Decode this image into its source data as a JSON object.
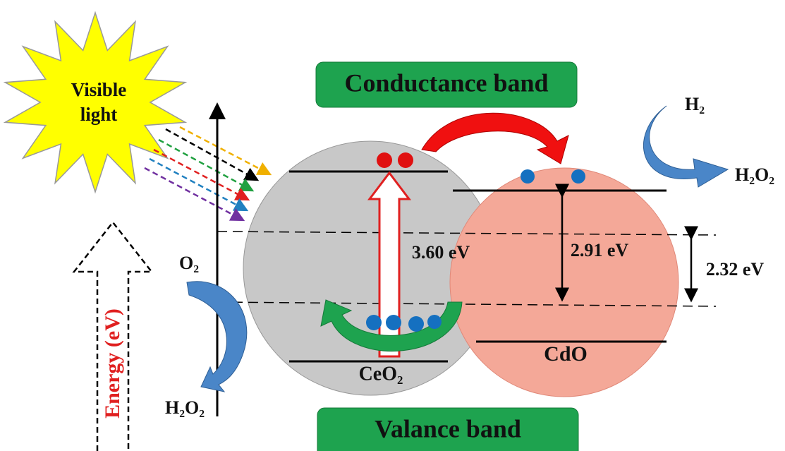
{
  "sun_label": [
    "Visible",
    "light"
  ],
  "bands": {
    "conduction": "Conductance band",
    "valence": "Valance band"
  },
  "energy_axis": "Energy (eV)",
  "ceo2": {
    "label": "CeO₂",
    "band_gap": "3.60 eV"
  },
  "cdo": {
    "label": "CdO",
    "band_gap": "2.91 eV"
  },
  "offset": "2.32 eV",
  "left_reaction": {
    "reactant": "O₂",
    "product": "H₂O₂"
  },
  "right_reaction": {
    "reactant": "H₂",
    "product": "H₂O₂"
  }
}
